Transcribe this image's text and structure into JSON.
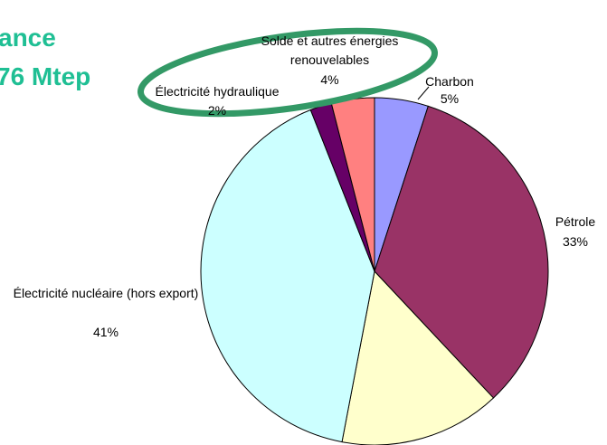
{
  "chart_data": {
    "type": "pie",
    "title_lines": [
      "ance",
      "76 Mtep"
    ],
    "categories": [
      "Charbon",
      "Pétrole",
      null,
      "Électricité nucléaire (hors export)",
      "Électricité hydraulique",
      "Solde et autres énergies renouvelables"
    ],
    "values": [
      5,
      33,
      15,
      41,
      2,
      4
    ],
    "value_labels": [
      "5%",
      "33%",
      null,
      "41%",
      "2%",
      "4%"
    ],
    "colors": [
      "#9999ff",
      "#993366",
      "#ffffcc",
      "#ccffff",
      "#660066",
      "#ff8080"
    ]
  }
}
